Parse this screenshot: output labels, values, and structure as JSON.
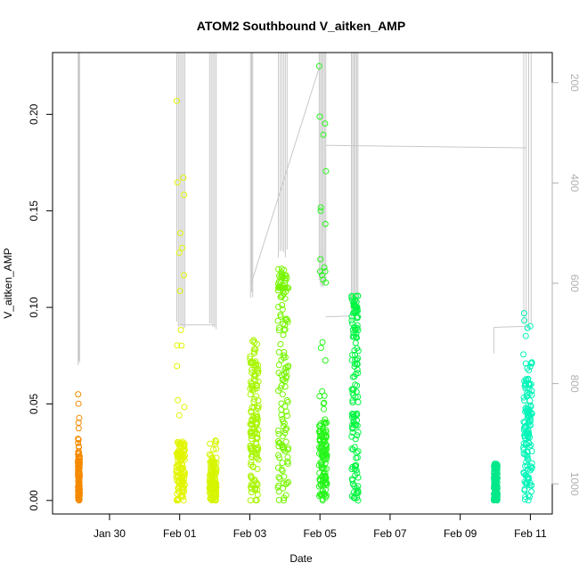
{
  "chart_data": {
    "type": "scatter",
    "title": "ATOM2 Southbound V_aitken_AMP",
    "xlabel": "Date",
    "ylabel": "V_aitken_AMP",
    "x_ticks": [
      "Jan 30",
      "Feb 01",
      "Feb 03",
      "Feb 05",
      "Feb 07",
      "Feb 09",
      "Feb 11"
    ],
    "y_ticks": [
      "0.00",
      "0.05",
      "0.10",
      "0.15",
      "0.20"
    ],
    "y2_ticks": [
      "200",
      "400",
      "600",
      "800",
      "1000"
    ],
    "ylim": [
      -0.007,
      0.232
    ],
    "y2lim": [
      140,
      1060
    ],
    "grid": false,
    "marker": "open-circle",
    "secondary_line_color": "#c8c8c8",
    "clusters": [
      {
        "x_start": "2017-01-29T02:24",
        "x_end": "2017-01-29T03:36",
        "color": "#f58a00",
        "y_dense_max": 0.02,
        "y_max": 0.055
      },
      {
        "x_start": "2017-01-31T21:36",
        "x_end": "2017-02-01T03:36",
        "color": "#e2f500",
        "y_dense_max": 0.03,
        "y_max": 0.207
      },
      {
        "x_start": "2017-02-01T20:24",
        "x_end": "2017-02-02T01:12",
        "color": "#d6f500",
        "y_dense_max": 0.02,
        "y_max": 0.031
      },
      {
        "x_start": "2017-02-03T00:00",
        "x_end": "2017-02-03T06:00",
        "color": "#a8f500",
        "y_dense_max": 0.07,
        "y_max": 0.083
      },
      {
        "x_start": "2017-02-03T19:12",
        "x_end": "2017-02-04T02:24",
        "color": "#76f500",
        "y_dense_max": 0.11,
        "y_max": 0.12
      },
      {
        "x_start": "2017-02-04T23:24",
        "x_end": "2017-02-05T04:48",
        "color": "#26f51a",
        "y_dense_max": 0.04,
        "y_max": 0.225
      },
      {
        "x_start": "2017-02-05T21:36",
        "x_end": "2017-02-06T02:24",
        "color": "#00f540",
        "y_dense_max": 0.1,
        "y_max": 0.106
      },
      {
        "x_start": "2017-02-09T23:00",
        "x_end": "2017-02-10T01:30",
        "color": "#00e889",
        "y_dense_max": 0.018,
        "y_max": 0.019
      },
      {
        "x_start": "2017-02-10T19:12",
        "x_end": "2017-02-11T01:12",
        "color": "#00f5b8",
        "y_dense_max": 0.06,
        "y_max": 0.097
      }
    ]
  }
}
